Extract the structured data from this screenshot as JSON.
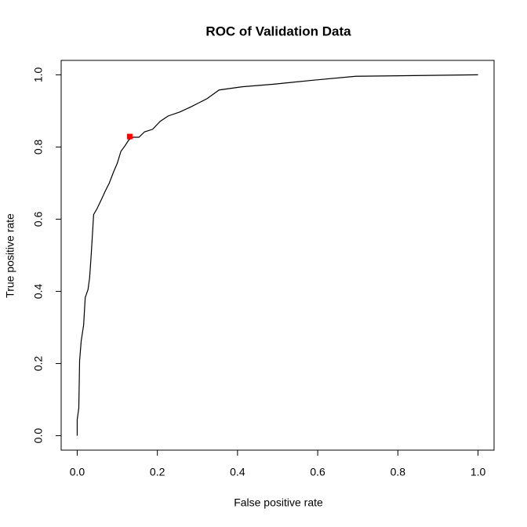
{
  "chart_data": {
    "type": "line",
    "title": "ROC of Validation Data",
    "x_label": "False positive rate",
    "y_label": "True positive rate",
    "xlim": [
      -0.04,
      1.04
    ],
    "ylim": [
      -0.04,
      1.04
    ],
    "xticks": [
      {
        "value": 0,
        "label": "0.0"
      },
      {
        "value": 0.2,
        "label": "0.2"
      },
      {
        "value": 0.4,
        "label": "0.4"
      },
      {
        "value": 0.6,
        "label": "0.6"
      },
      {
        "value": 0.8,
        "label": "0.8"
      },
      {
        "value": 1,
        "label": "1.0"
      }
    ],
    "yticks": [
      {
        "value": 0,
        "label": "0.0"
      },
      {
        "value": 0.2,
        "label": "0.2"
      },
      {
        "value": 0.4,
        "label": "0.4"
      },
      {
        "value": 0.6,
        "label": "0.6"
      },
      {
        "value": 0.8,
        "label": "0.8"
      },
      {
        "value": 1,
        "label": "1.0"
      }
    ],
    "line": {
      "color": "#000000",
      "x": [
        0,
        0,
        0.004,
        0.006,
        0.01,
        0.016,
        0.02,
        0.027,
        0.031,
        0.035,
        0.041,
        0.049,
        0.061,
        0.07,
        0.08,
        0.09,
        0.1,
        0.109,
        0.119,
        0.129,
        0.139,
        0.154,
        0.168,
        0.188,
        0.207,
        0.227,
        0.256,
        0.285,
        0.324,
        0.354,
        0.412,
        0.49,
        0.588,
        0.695,
        0.998,
        1
      ],
      "y": [
        0,
        0.044,
        0.077,
        0.208,
        0.263,
        0.306,
        0.383,
        0.405,
        0.438,
        0.503,
        0.613,
        0.628,
        0.656,
        0.678,
        0.7,
        0.729,
        0.755,
        0.788,
        0.803,
        0.82,
        0.827,
        0.827,
        0.842,
        0.849,
        0.871,
        0.886,
        0.897,
        0.912,
        0.934,
        0.958,
        0.967,
        0.974,
        0.985,
        0.996,
        1,
        1
      ]
    },
    "marker": {
      "x": 0.131,
      "y": 0.829,
      "color": "#ff0000"
    }
  }
}
